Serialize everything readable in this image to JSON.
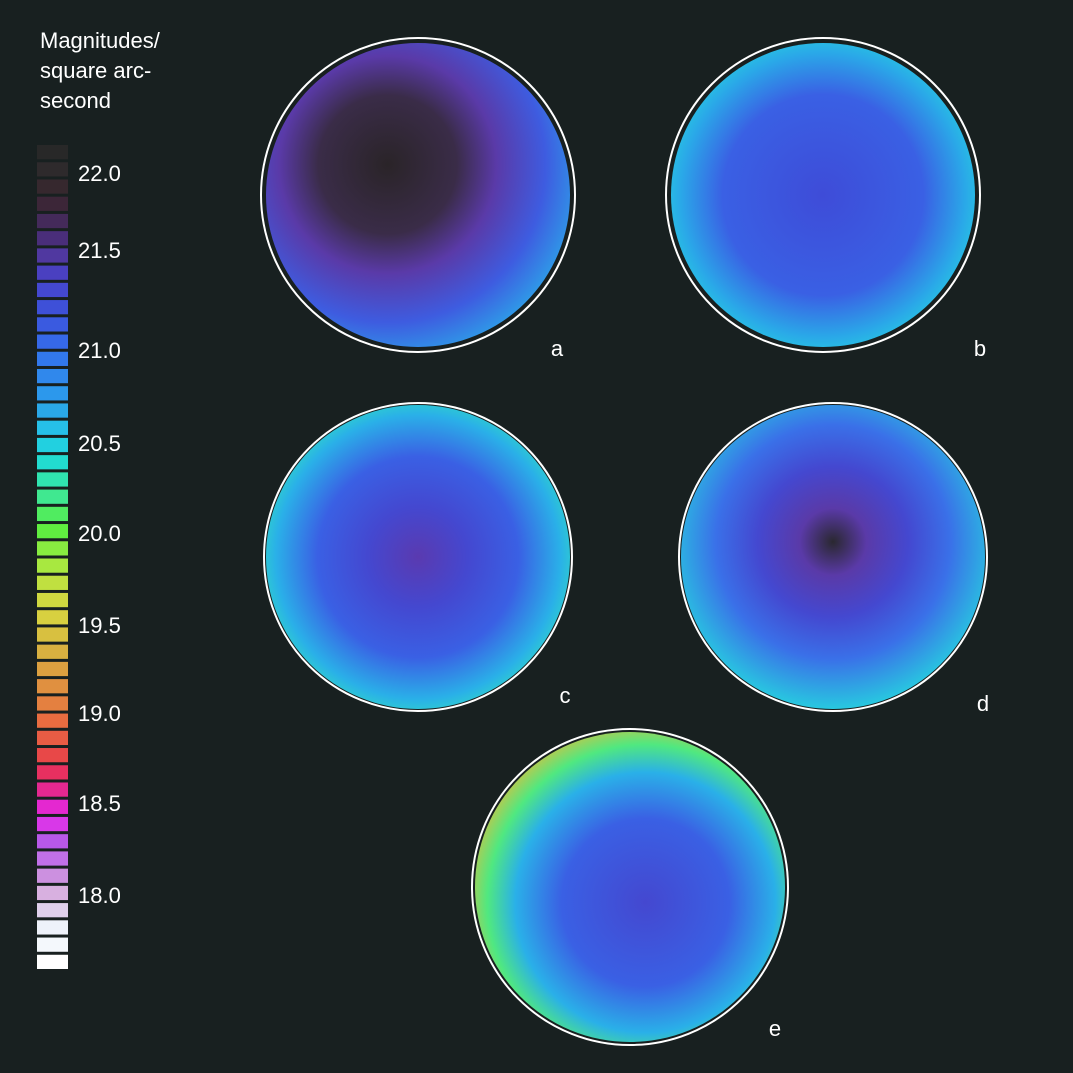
{
  "legend": {
    "title": [
      "Magnitudes/",
      "square arc-",
      "second"
    ],
    "labels": [
      "22.0",
      "21.5",
      "21.0",
      "20.5",
      "20.0",
      "19.5",
      "19.0",
      "18.5",
      "18.0"
    ],
    "colors": [
      "#282828",
      "#2e2a2c",
      "#36282e",
      "#3c2638",
      "#442a5a",
      "#4a2e7a",
      "#5038a0",
      "#4a40c0",
      "#4448d0",
      "#3e50d8",
      "#3a5ae0",
      "#3668e8",
      "#3278ec",
      "#3088ec",
      "#2c98ec",
      "#2aa8e8",
      "#26c0e8",
      "#22d0e0",
      "#22dcd0",
      "#30e4b0",
      "#40e890",
      "#50ec60",
      "#60ee40",
      "#88ec40",
      "#a8e840",
      "#c0e040",
      "#d0d840",
      "#d8d040",
      "#d8c040",
      "#d8b040",
      "#dca040",
      "#e09040",
      "#e48040",
      "#e86c40",
      "#e85c44",
      "#e84848",
      "#e83060",
      "#e42890",
      "#e428d0",
      "#d838e8",
      "#b858e8",
      "#c070e8",
      "#cc90e0",
      "#d8b0e0",
      "#e0d0ec",
      "#eef2fa",
      "#f4f8fc",
      "#ffffff"
    ]
  },
  "panels": [
    "a",
    "b",
    "c",
    "d",
    "e"
  ]
}
